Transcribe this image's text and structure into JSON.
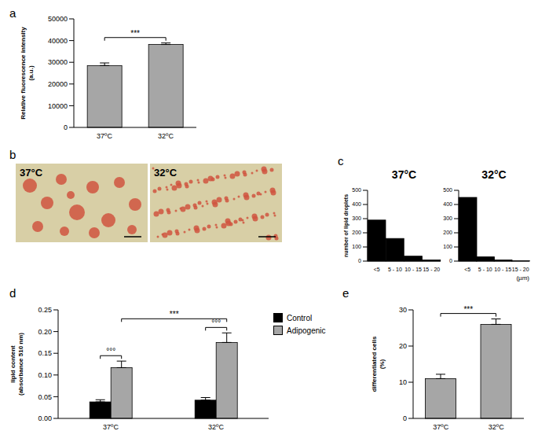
{
  "chart_data": [
    {
      "panel": "a",
      "type": "bar",
      "categories": [
        "37ºC",
        "32ºC"
      ],
      "values": [
        28500,
        38200
      ],
      "errors": [
        1200,
        700
      ],
      "color": "#a6a6a6",
      "ylabel": [
        "Relative fluorescence intensity",
        "(a.u.)"
      ],
      "ylim": [
        0,
        50000
      ],
      "yticks": [
        0,
        10000,
        20000,
        30000,
        40000,
        50000
      ],
      "annotations": [
        {
          "text": "***",
          "from": "37ºC",
          "to": "32ºC"
        }
      ]
    },
    {
      "panel": "c",
      "type": "bar",
      "title": "37°C",
      "categories": [
        "<5",
        "5 - 10",
        "10 - 15",
        "15 - 20"
      ],
      "values": [
        290,
        160,
        35,
        8
      ],
      "color": "#000000",
      "ylabel": "number of lipid droplets",
      "ylim": [
        0,
        500
      ],
      "yticks": [
        0,
        100,
        200,
        300,
        400,
        500
      ]
    },
    {
      "type": "bar",
      "title": "32°C",
      "categories": [
        "<5",
        "5 - 10",
        "10 - 15",
        "15 - 20"
      ],
      "values": [
        450,
        30,
        8,
        2
      ],
      "color": "#000000",
      "xlabel": "(µm)",
      "ylim": [
        0,
        500
      ],
      "yticks": [
        0,
        100,
        200,
        300,
        400,
        500
      ]
    },
    {
      "panel": "d",
      "type": "bar",
      "categories": [
        "37ºC",
        "32ºC"
      ],
      "series": [
        {
          "name": "Control",
          "color": "#000000",
          "values": [
            0.038,
            0.042
          ],
          "errors": [
            0.005,
            0.006
          ]
        },
        {
          "name": "Adipogenic",
          "color": "#a6a6a6",
          "values": [
            0.117,
            0.175
          ],
          "errors": [
            0.015,
            0.022
          ]
        }
      ],
      "ylabel": [
        "lipid content",
        "(absorbance 510 nm)"
      ],
      "ylim": [
        0,
        0.25
      ],
      "yticks": [
        {
          "value": 0,
          "label": "0.00"
        },
        0.05,
        {
          "value": 0.1,
          "label": "0.10"
        },
        0.15,
        {
          "value": 0.2,
          "label": "0.20"
        },
        0.25
      ],
      "legend": "right",
      "annotations": [
        {
          "text": "°°°",
          "category": "37ºC"
        },
        {
          "text": "°°°",
          "category": "32ºC"
        },
        {
          "text": "***",
          "series": "Adipogenic",
          "from": "37ºC",
          "to": "32ºC"
        }
      ]
    },
    {
      "panel": "e",
      "type": "bar",
      "categories": [
        "37ºC",
        "32ºC"
      ],
      "values": [
        11,
        26
      ],
      "errors": [
        1.2,
        1.5
      ],
      "color": "#a6a6a6",
      "ylabel": [
        "differentiated cells",
        "(%)"
      ],
      "ylim": [
        0,
        30
      ],
      "yticks": [
        0,
        10,
        20,
        30
      ],
      "annotations": [
        {
          "text": "***",
          "from": "37ºC",
          "to": "32ºC"
        }
      ]
    }
  ],
  "images": {
    "panel": "b",
    "labels": [
      "37°C",
      "32°C"
    ]
  }
}
